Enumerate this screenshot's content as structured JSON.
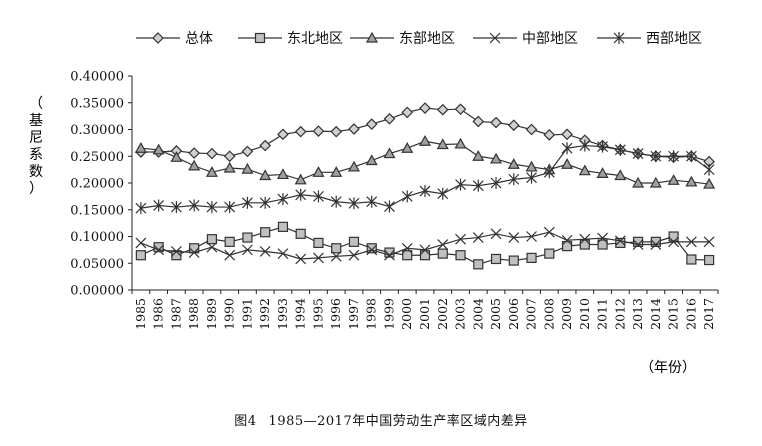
{
  "figure": {
    "number": "图4",
    "title": "1985—2017年中国劳动生产率区域内差异"
  },
  "chart_data": {
    "type": "line",
    "title": "",
    "ylabel": "（基尼系数）",
    "xlabel": "（年份）",
    "ylim": [
      0,
      0.4
    ],
    "yticks": [
      "0.00000",
      "0.05000",
      "0.10000",
      "0.15000",
      "0.20000",
      "0.25000",
      "0.30000",
      "0.35000",
      "0.40000"
    ],
    "grid": false,
    "legend_position": "top",
    "x": [
      "1985",
      "1986",
      "1987",
      "1988",
      "1989",
      "1990",
      "1991",
      "1992",
      "1993",
      "1994",
      "1995",
      "1996",
      "1997",
      "1998",
      "1999",
      "2000",
      "2001",
      "2002",
      "2003",
      "2004",
      "2005",
      "2006",
      "2007",
      "2008",
      "2009",
      "2010",
      "2011",
      "2012",
      "2013",
      "2014",
      "2015",
      "2016",
      "2017"
    ],
    "series": [
      {
        "name": "总体",
        "marker": "diamond",
        "fill": "#d0d0d0",
        "values": [
          0.258,
          0.258,
          0.26,
          0.256,
          0.255,
          0.25,
          0.259,
          0.27,
          0.291,
          0.296,
          0.297,
          0.296,
          0.301,
          0.31,
          0.32,
          0.332,
          0.34,
          0.337,
          0.338,
          0.315,
          0.313,
          0.308,
          0.3,
          0.29,
          0.291,
          0.28,
          0.27,
          0.262,
          0.255,
          0.25,
          0.248,
          0.25,
          0.24
        ]
      },
      {
        "name": "东北地区",
        "marker": "square",
        "fill": "#c0c0c0",
        "values": [
          0.065,
          0.08,
          0.065,
          0.078,
          0.095,
          0.09,
          0.098,
          0.108,
          0.118,
          0.105,
          0.088,
          0.078,
          0.09,
          0.078,
          0.07,
          0.065,
          0.065,
          0.068,
          0.065,
          0.048,
          0.058,
          0.055,
          0.06,
          0.068,
          0.082,
          0.085,
          0.085,
          0.088,
          0.09,
          0.09,
          0.1,
          0.057,
          0.056
        ]
      },
      {
        "name": "东部地区",
        "marker": "triangle",
        "fill": "#a0a0a0",
        "values": [
          0.265,
          0.262,
          0.248,
          0.232,
          0.22,
          0.228,
          0.226,
          0.214,
          0.216,
          0.206,
          0.22,
          0.22,
          0.23,
          0.242,
          0.255,
          0.265,
          0.278,
          0.272,
          0.273,
          0.25,
          0.245,
          0.235,
          0.23,
          0.225,
          0.235,
          0.223,
          0.218,
          0.214,
          0.2,
          0.2,
          0.205,
          0.202,
          0.198
        ]
      },
      {
        "name": "中部地区",
        "marker": "x",
        "fill": "none",
        "values": [
          0.088,
          0.075,
          0.072,
          0.07,
          0.08,
          0.065,
          0.075,
          0.072,
          0.068,
          0.058,
          0.06,
          0.063,
          0.065,
          0.075,
          0.065,
          0.078,
          0.075,
          0.085,
          0.095,
          0.098,
          0.105,
          0.098,
          0.1,
          0.108,
          0.093,
          0.095,
          0.097,
          0.092,
          0.085,
          0.085,
          0.09,
          0.09,
          0.09
        ]
      },
      {
        "name": "西部地区",
        "marker": "asterisk",
        "fill": "none",
        "values": [
          0.153,
          0.158,
          0.155,
          0.158,
          0.155,
          0.155,
          0.163,
          0.163,
          0.17,
          0.178,
          0.175,
          0.165,
          0.162,
          0.165,
          0.156,
          0.175,
          0.185,
          0.18,
          0.197,
          0.195,
          0.2,
          0.207,
          0.21,
          0.22,
          0.265,
          0.27,
          0.268,
          0.262,
          0.255,
          0.25,
          0.25,
          0.25,
          0.225
        ]
      }
    ]
  }
}
